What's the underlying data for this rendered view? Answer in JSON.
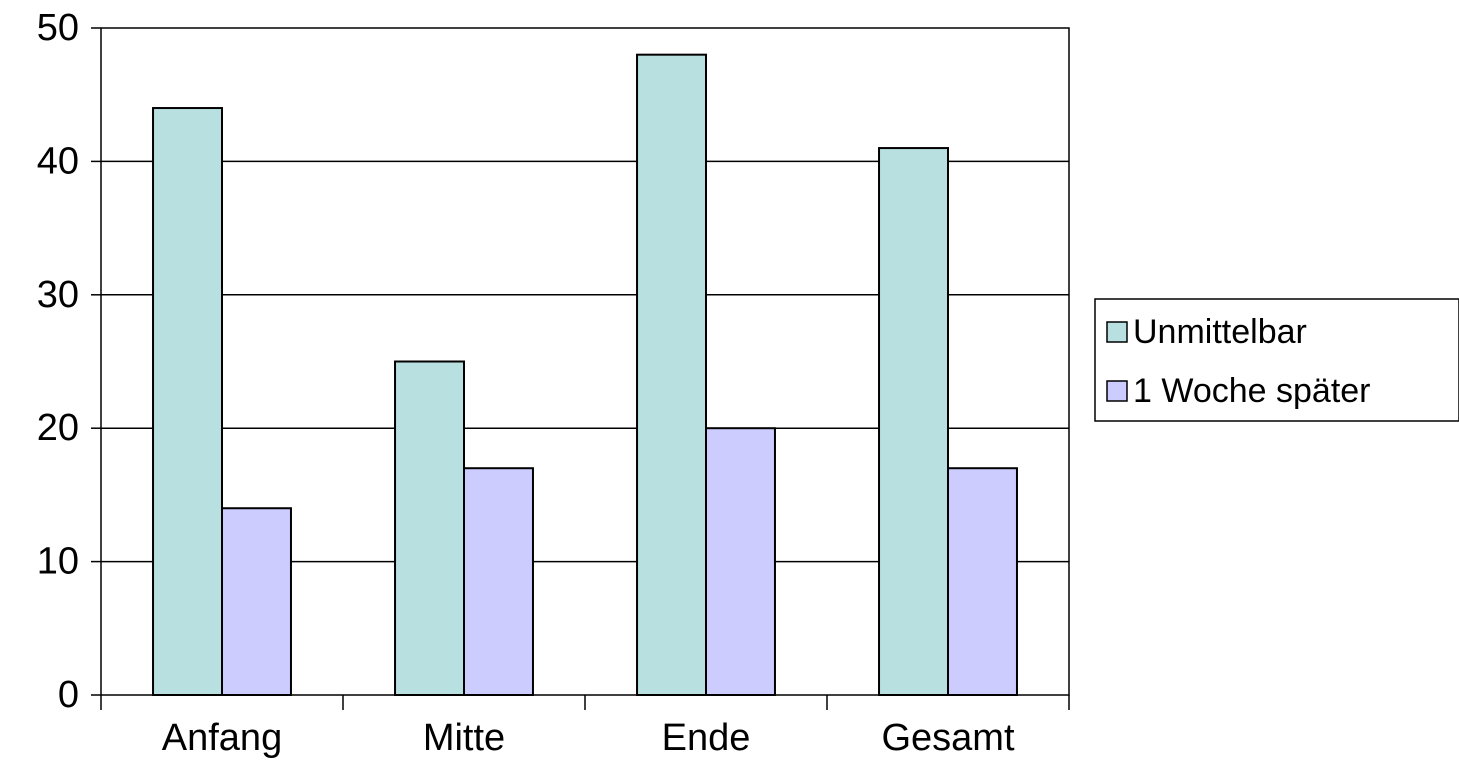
{
  "chart_data": {
    "type": "bar",
    "categories": [
      "Anfang",
      "Mitte",
      "Ende",
      "Gesamt"
    ],
    "series": [
      {
        "name": "Unmittelbar",
        "values": [
          44,
          25,
          48,
          41
        ],
        "color": "#b8e0e0"
      },
      {
        "name": "1 Woche später",
        "values": [
          14,
          17,
          20,
          17
        ],
        "color": "#ccccff"
      }
    ],
    "y_ticks": [
      "0",
      "10",
      "20",
      "30",
      "40",
      "50"
    ],
    "ylim": [
      0,
      50
    ],
    "grid": true,
    "legend_position": "right",
    "colors": {
      "bar_outline": "#000000",
      "gridline": "#000000",
      "axis": "#000000",
      "background": "#ffffff"
    }
  }
}
